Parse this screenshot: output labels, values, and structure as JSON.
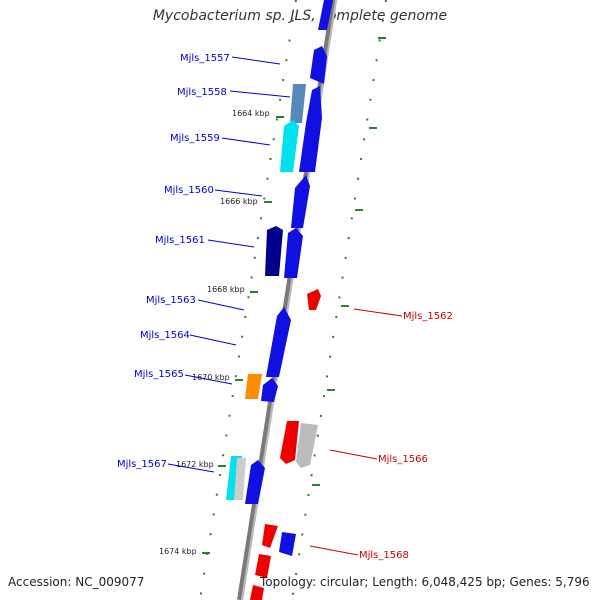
{
  "title": "Mycobacterium sp. JLS, complete genome",
  "footer": {
    "accession": "Accession: NC_009077",
    "summary": "Topology: circular; Length: 6,048,425 bp; Genes: 5,796"
  },
  "colors": {
    "forward_label": "#0000cc",
    "reverse_label": "#cc0000",
    "backbone": "#888888",
    "tick": "#2e7d32"
  },
  "ticks": [
    "1664 kbp",
    "1666 kbp",
    "1668 kbp",
    "1670 kbp",
    "1672 kbp",
    "1674 kbp"
  ],
  "genes_forward": [
    "Mjls_1557",
    "Mjls_1558",
    "Mjls_1559",
    "Mjls_1560",
    "Mjls_1561",
    "Mjls_1563",
    "Mjls_1564",
    "Mjls_1565",
    "Mjls_1567"
  ],
  "genes_reverse": [
    "Mjls_1562",
    "Mjls_1566",
    "Mjls_1568"
  ]
}
